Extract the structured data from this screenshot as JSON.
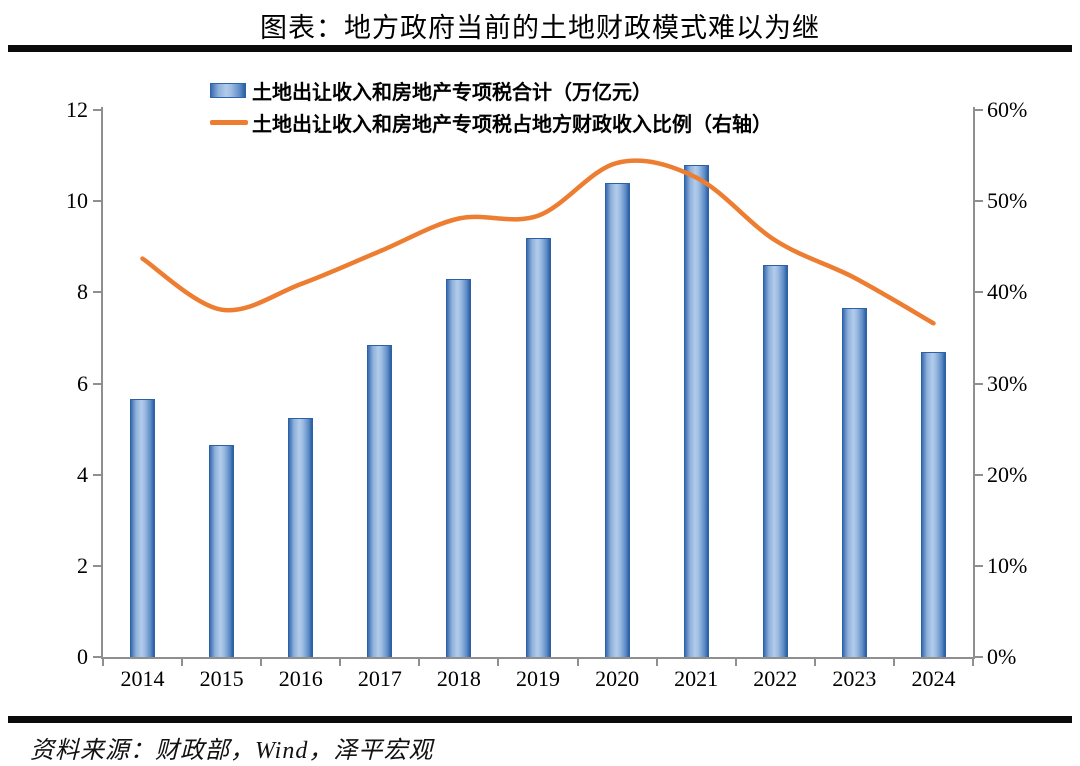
{
  "page": {
    "title": "图表：地方政府当前的土地财政模式难以为继",
    "source": "资料来源：财政部，Wind，泽平宏观"
  },
  "chart_data": {
    "type": "bar+line-combo",
    "title": "图表：地方政府当前的土地财政模式难以为继",
    "categories": [
      "2014",
      "2015",
      "2016",
      "2017",
      "2018",
      "2019",
      "2020",
      "2021",
      "2022",
      "2023",
      "2024"
    ],
    "series": [
      {
        "name": "土地出让收入和房地产专项税合计（万亿元）",
        "type": "bar",
        "axis": "left",
        "values": [
          5.65,
          4.65,
          5.25,
          6.85,
          8.3,
          9.2,
          10.4,
          10.8,
          8.6,
          7.65,
          6.7
        ],
        "bar_edge_color": "#2E64AC",
        "bar_center_color": "#B2CBEA"
      },
      {
        "name": "土地出让收入和房地产专项税占地方财政收入比例（右轴）",
        "type": "line",
        "axis": "right",
        "values": [
          43.7,
          38.1,
          40.9,
          44.5,
          48.1,
          48.4,
          54.2,
          52.6,
          45.7,
          41.6,
          36.6
        ],
        "unit": "%",
        "color": "#ED7D31",
        "smooth": true
      }
    ],
    "left_axis": {
      "min": 0,
      "max": 12,
      "step": 2,
      "tick_labels": [
        "0",
        "2",
        "4",
        "6",
        "8",
        "10",
        "12"
      ]
    },
    "right_axis": {
      "min": 0,
      "max": 60,
      "step": 10,
      "tick_labels": [
        "0%",
        "10%",
        "20%",
        "30%",
        "40%",
        "50%",
        "60%"
      ]
    },
    "grid": false,
    "legend_position": "top-center",
    "axis_color": "#8F8F8F"
  }
}
